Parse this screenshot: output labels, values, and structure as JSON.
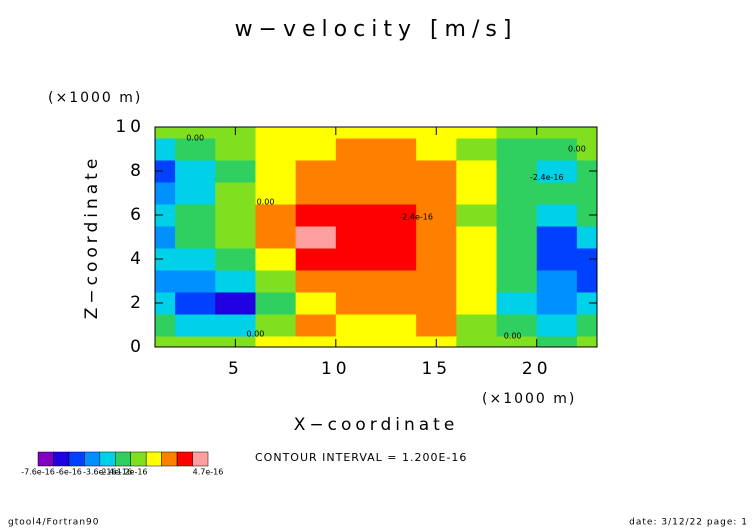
{
  "chart_data": {
    "type": "contour",
    "title": "w−velocity [m/s]",
    "x_label": "X−coordinate",
    "y_label": "Z−coordinate",
    "x_unit": "(×1000 m)",
    "y_unit": "(×1000 m)",
    "xlim": [
      1,
      23
    ],
    "xticks": [
      5,
      10,
      15,
      20
    ],
    "ylim": [
      0,
      10
    ],
    "yticks": [
      0,
      2,
      4,
      6,
      8,
      10
    ],
    "x": [
      1,
      3,
      5,
      7,
      9,
      11,
      13,
      15,
      17,
      19,
      21,
      23
    ],
    "z": [
      0,
      1,
      2,
      3,
      4,
      5,
      6,
      7,
      8,
      9,
      10
    ],
    "values": [
      [
        -1e-16,
        -1e-16,
        -5e-17,
        5e-17,
        5e-17,
        5e-17,
        5e-17,
        5e-17,
        -5e-17,
        -1e-16,
        -1.5e-16,
        -1e-16
      ],
      [
        -2e-16,
        -3e-16,
        -3e-16,
        -5e-17,
        1.5e-16,
        5e-17,
        5e-17,
        1.5e-16,
        -5e-17,
        -1.5e-16,
        -3e-16,
        -2e-16
      ],
      [
        -3e-16,
        -5e-16,
        -7e-16,
        -1.5e-16,
        5e-17,
        1.5e-16,
        1.5e-16,
        1.5e-16,
        5e-17,
        -2.5e-16,
        -4e-16,
        -3e-16
      ],
      [
        -4e-16,
        -4e-16,
        -3e-16,
        -5e-17,
        1.5e-16,
        2e-16,
        2e-16,
        1.5e-16,
        5e-17,
        -2e-16,
        -4e-16,
        -5e-16
      ],
      [
        -3e-16,
        -3e-16,
        -1.5e-16,
        5e-17,
        2.5e-16,
        3e-16,
        3e-16,
        2e-16,
        5e-17,
        -1.5e-16,
        -5e-16,
        -6e-16
      ],
      [
        -4e-16,
        -2e-16,
        -5e-17,
        1.5e-16,
        4e-16,
        3e-16,
        3e-16,
        2e-16,
        5e-17,
        -2e-16,
        -5e-16,
        -3e-16
      ],
      [
        -3e-16,
        -2e-16,
        -5e-17,
        1.5e-16,
        2.5e-16,
        2.5e-16,
        2.5e-16,
        1.5e-16,
        -5e-17,
        -2e-16,
        -3e-16,
        -2e-16
      ],
      [
        -4e-16,
        -2.5e-16,
        -1e-16,
        5e-17,
        1.5e-16,
        2e-16,
        2e-16,
        1.5e-16,
        5e-17,
        -1.5e-16,
        -2e-16,
        -1.5e-16
      ],
      [
        -5e-16,
        -3e-16,
        -1.5e-16,
        5e-17,
        1.5e-16,
        1.8e-16,
        1.8e-16,
        1.5e-16,
        5e-17,
        -2e-16,
        -3e-16,
        -2e-16
      ],
      [
        -3e-16,
        -2e-16,
        -1e-16,
        5e-17,
        5e-17,
        1.5e-16,
        1.5e-16,
        5e-17,
        -5e-17,
        -1.5e-16,
        -2e-16,
        -1e-16
      ],
      [
        -1e-16,
        -1e-16,
        -5e-17,
        5e-17,
        5e-17,
        5e-17,
        5e-17,
        5e-17,
        5e-17,
        -5e-17,
        -1e-16,
        -5e-17
      ]
    ],
    "levels": [
      -7.6e-16,
      -7.2e-16,
      -6e-16,
      -4.8e-16,
      -3.6e-16,
      -2.4e-16,
      -1.2e-16,
      0,
      1.2e-16,
      2.4e-16,
      3.6e-16,
      4.7e-16
    ],
    "colors": [
      "#8000c0",
      "#2000e0",
      "#0040ff",
      "#0090ff",
      "#00d0e8",
      "#30d060",
      "#80e020",
      "#ffff00",
      "#ff8000",
      "#ff0000",
      "#ffa0a0"
    ],
    "colorbar_ticks": [
      -7.6e-16,
      -6e-16,
      -3.6e-16,
      -2.4e-16,
      -1.2e-16,
      4.7e-16
    ],
    "annotations": [
      {
        "text": "0.00",
        "x": 3,
        "z": 9.5
      },
      {
        "text": "0.00",
        "x": 6.5,
        "z": 6.6
      },
      {
        "text": "0.00",
        "x": 6,
        "z": 0.6
      },
      {
        "text": "-2.4e-16",
        "x": 14,
        "z": 5.9
      },
      {
        "text": "-2.4e-16",
        "x": 20.5,
        "z": 7.7
      },
      {
        "text": "0.00",
        "x": 18.8,
        "z": 0.5
      },
      {
        "text": "0.00",
        "x": 22,
        "z": 9
      }
    ],
    "contour_interval": "CONTOUR INTERVAL = 1.200E-16",
    "footer_left": "gtool4/Fortran90",
    "footer_right": "date: 3/12/22 page: 1"
  }
}
